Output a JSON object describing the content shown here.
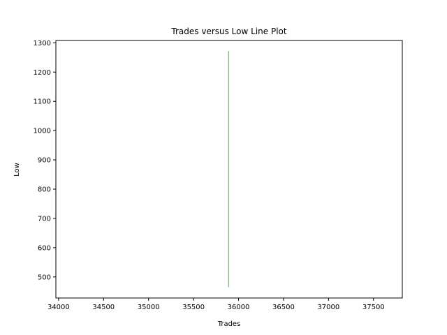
{
  "chart_data": {
    "type": "line",
    "title": "Trades versus Low Line Plot",
    "xlabel": "Trades",
    "ylabel": "Low",
    "xlim": [
      33970,
      37820
    ],
    "ylim": [
      428,
      1308
    ],
    "xticks": [
      34000,
      34500,
      35000,
      35500,
      36000,
      36500,
      37000,
      37500
    ],
    "yticks": [
      500,
      600,
      700,
      800,
      900,
      1000,
      1100,
      1200,
      1300
    ],
    "grid": false,
    "series": [
      {
        "color": "#77cc77",
        "x": [
          35890,
          35890,
          35890,
          35890,
          35890,
          35890,
          35890,
          35890,
          35890
        ],
        "y": [
          465,
          580,
          650,
          720,
          850,
          980,
          1050,
          1200,
          1272
        ]
      }
    ]
  }
}
